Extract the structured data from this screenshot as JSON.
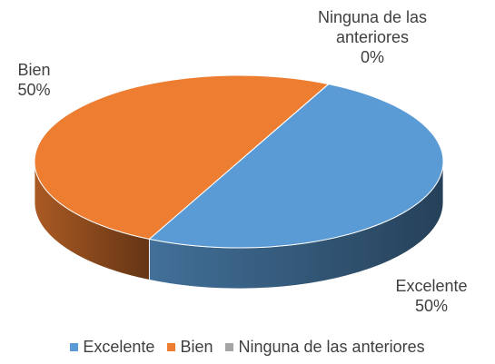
{
  "chart_data": {
    "type": "pie3d",
    "categories": [
      "Excelente",
      "Bien",
      "Ninguna de las anteriores"
    ],
    "values": [
      50,
      50,
      0
    ],
    "value_labels": [
      "50%",
      "50%",
      "0%"
    ],
    "colors": [
      "#5b9bd5",
      "#ed7d31",
      "#a5a5a5"
    ],
    "legend": "bottom"
  }
}
